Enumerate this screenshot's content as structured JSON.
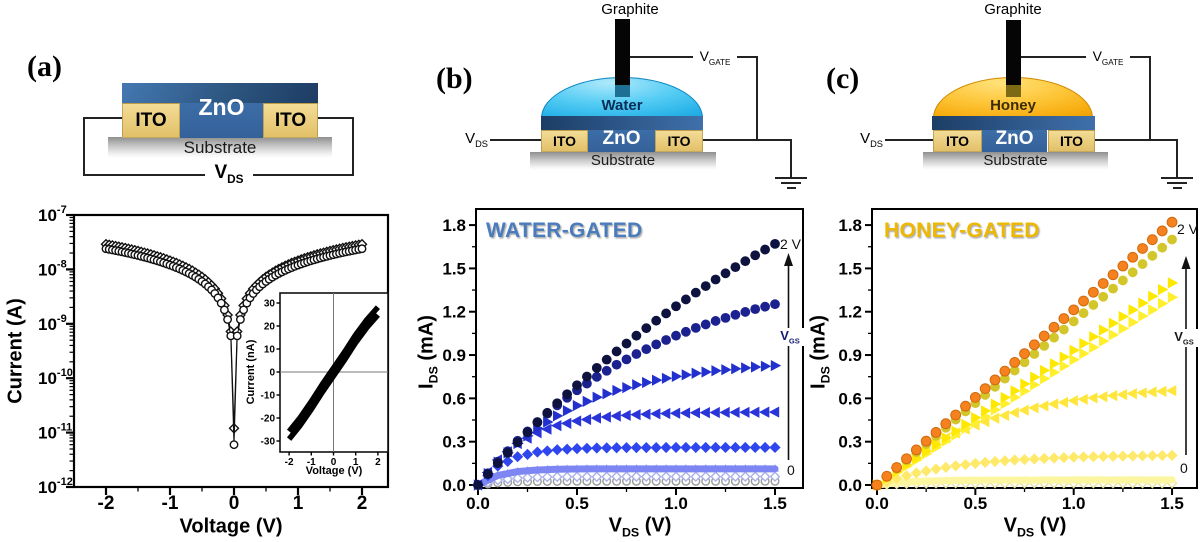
{
  "panel_labels": {
    "a": "(a)",
    "b": "(b)",
    "c": "(c)"
  },
  "schematic_a": {
    "zno": "ZnO",
    "ito_left": "ITO",
    "ito_right": "ITO",
    "substrate": "Substrate",
    "vds": {
      "main": "V",
      "sub": "DS"
    }
  },
  "schematic_b": {
    "graphite": "Graphite",
    "liquid": "Water",
    "zno": "ZnO",
    "ito_left": "ITO",
    "ito_right": "ITO",
    "substrate": "Substrate",
    "vds": {
      "main": "V",
      "sub": "DS"
    },
    "vgate": {
      "main": "V",
      "sub": "GATE"
    },
    "liquid_label_color": "#0a2d55"
  },
  "schematic_c": {
    "graphite": "Graphite",
    "liquid": "Honey",
    "zno": "ZnO",
    "ito_left": "ITO",
    "ito_right": "ITO",
    "substrate": "Substrate",
    "vds": {
      "main": "V",
      "sub": "DS"
    },
    "vgate": {
      "main": "V",
      "sub": "GATE"
    },
    "liquid_label_color": "#3b2c03"
  },
  "chart_data": [
    {
      "id": "a_main",
      "type": "scatter",
      "x_axis": {
        "label": "Voltage (V)",
        "tick_values": [
          -2,
          -1,
          0,
          1,
          2
        ],
        "tick_labels": [
          "-2",
          "-1",
          "0",
          "1",
          "2"
        ],
        "range": [
          -2.5,
          2.4
        ]
      },
      "y_axis": {
        "label": "Current (A)",
        "log": true,
        "tick_exponents": [
          -7,
          -8,
          -9,
          -10,
          -11,
          -12
        ],
        "range_exp": [
          -12,
          -7
        ]
      },
      "series": [
        {
          "name": "sweep-diamond",
          "marker": "diamond",
          "open": true,
          "color": "#111111",
          "x_start": -2,
          "x_step": 0.1,
          "y_nA": [
            29,
            27.6,
            26.1,
            24.7,
            23.2,
            21.8,
            20.3,
            18.9,
            17.4,
            16,
            14.5,
            13.1,
            11.6,
            10.2,
            8.7,
            7.3,
            5.8,
            4.4,
            2.9,
            1.45,
            0.012,
            1.45,
            2.9,
            4.4,
            5.8,
            7.3,
            8.7,
            10.2,
            11.6,
            13.1,
            14.5,
            16,
            17.4,
            18.9,
            20.3,
            21.8,
            23.2,
            24.7,
            26.1,
            27.6,
            29
          ],
          "extra_points_nA": [
            [
              -0.05,
              0.72
            ],
            [
              0.05,
              0.72
            ]
          ]
        },
        {
          "name": "sweep-circle",
          "marker": "circle",
          "open": true,
          "color": "#111111",
          "x_start": -2,
          "x_step": 0.1,
          "y_nA": [
            24,
            22.8,
            21.6,
            20.4,
            19.2,
            18,
            16.8,
            15.6,
            14.4,
            13.2,
            12,
            10.8,
            9.6,
            8.4,
            7.2,
            6,
            4.8,
            3.6,
            2.4,
            1.2,
            0.006,
            1.2,
            2.4,
            3.6,
            4.8,
            6,
            7.2,
            8.4,
            9.6,
            10.8,
            12,
            13.2,
            14.4,
            15.6,
            16.8,
            18,
            19.2,
            20.4,
            21.6,
            22.8,
            24
          ],
          "extra_points_nA": [
            [
              -0.05,
              0.6
            ],
            [
              0.05,
              0.6
            ]
          ]
        }
      ]
    },
    {
      "id": "a_inset",
      "type": "line",
      "x_axis": {
        "label": "Voltage (V)",
        "tick_values": [
          -2,
          -1,
          0,
          1,
          2
        ],
        "tick_labels": [
          "-2",
          "-1",
          "0",
          "1",
          "2"
        ]
      },
      "y_axis": {
        "label": "Current (nA)",
        "tick_values": [
          30,
          20,
          10,
          0,
          -10,
          -20,
          -30
        ],
        "tick_labels": [
          "30",
          "20",
          "10",
          "0",
          "-10",
          "-20",
          "-30"
        ]
      },
      "series": [
        {
          "name": "iv-band",
          "color": "#000000",
          "x": [
            -2,
            -1.5,
            -1,
            -0.5,
            0,
            0.5,
            1,
            1.5,
            2
          ],
          "y": [
            -27.5,
            -21.5,
            -14.5,
            -7,
            0,
            7,
            14.5,
            21,
            26.5
          ]
        }
      ]
    },
    {
      "id": "b_out",
      "type": "scatter",
      "title": "WATER-GATED",
      "title_color": "#4a7cbd",
      "x_axis": {
        "label_parts": [
          "V",
          "DS",
          " (V)"
        ],
        "tick_values": [
          0,
          0.5,
          1,
          1.5
        ],
        "tick_labels": [
          "0.0",
          "0.5",
          "1.0",
          "1.5"
        ]
      },
      "y_axis": {
        "label_parts": [
          "I",
          "DS",
          " (mA)"
        ],
        "tick_values": [
          0,
          0.3,
          0.6,
          0.9,
          1.2,
          1.5,
          1.8
        ],
        "tick_labels": [
          "0.0",
          "0.3",
          "0.6",
          "0.9",
          "1.2",
          "1.5",
          "1.8"
        ]
      },
      "annotations": {
        "vg_top": "2 V",
        "vg_bottom": "0",
        "arrow_label": {
          "main": "V",
          "sub": "GS"
        },
        "arrow_label_color": "#141c6e"
      },
      "x_step": 0.1,
      "series": [
        {
          "name": "vgs-2.0V",
          "marker": "circle",
          "color": "#0d123f",
          "values": [
            0,
            0.151,
            0.296,
            0.434,
            0.566,
            0.691,
            0.811,
            0.925,
            1.034,
            1.138,
            1.238,
            1.332,
            1.423,
            1.509,
            1.591,
            1.67
          ]
        },
        {
          "name": "vgs-1.75V",
          "marker": "circle",
          "color": "#1b2290",
          "values": [
            0,
            0.162,
            0.306,
            0.436,
            0.552,
            0.656,
            0.749,
            0.833,
            0.907,
            0.974,
            1.034,
            1.088,
            1.136,
            1.179,
            1.218,
            1.252
          ]
        },
        {
          "name": "vgs-1.5V",
          "marker": "tri-right",
          "color": "#2230cd",
          "values": [
            0,
            0.158,
            0.287,
            0.393,
            0.479,
            0.55,
            0.608,
            0.655,
            0.694,
            0.726,
            0.752,
            0.774,
            0.791,
            0.805,
            0.817,
            0.827
          ]
        },
        {
          "name": "vgs-1.25V",
          "marker": "tri-left",
          "color": "#2a35d9",
          "values": [
            0,
            0.173,
            0.287,
            0.362,
            0.411,
            0.443,
            0.464,
            0.478,
            0.487,
            0.493,
            0.497,
            0.5,
            0.502,
            0.503,
            0.504,
            0.505
          ]
        },
        {
          "name": "vgs-1.0V",
          "marker": "diamond",
          "color": "#2f46ee",
          "values": [
            0,
            0.131,
            0.196,
            0.228,
            0.244,
            0.252,
            0.256,
            0.258,
            0.259,
            0.259,
            0.26,
            0.26,
            0.26,
            0.26,
            0.26,
            0.26
          ]
        },
        {
          "name": "vgs-0.75V",
          "marker": "band",
          "color": "#7d86f2",
          "values": [
            0,
            0.066,
            0.093,
            0.104,
            0.109,
            0.111,
            0.112,
            0.112,
            0.112,
            0.112,
            0.112,
            0.112,
            0.112,
            0.112,
            0.112,
            0.112
          ]
        },
        {
          "name": "vgs-0.5V",
          "marker": "diamond",
          "open": true,
          "color": "#a9b1e8",
          "values": [
            0,
            0.034,
            0.048,
            0.054,
            0.056,
            0.057,
            0.057,
            0.058,
            0.058,
            0.058,
            0.058,
            0.058,
            0.058,
            0.058,
            0.058,
            0.058
          ]
        },
        {
          "name": "vgs-0V",
          "marker": "circle",
          "open": true,
          "color": "#999999",
          "values": [
            0,
            0.015,
            0.022,
            0.024,
            0.025,
            0.026,
            0.026,
            0.026,
            0.026,
            0.026,
            0.026,
            0.026,
            0.026,
            0.026,
            0.026,
            0.026
          ]
        }
      ]
    },
    {
      "id": "c_out",
      "type": "scatter",
      "title": "HONEY-GATED",
      "title_color": "#eeb800",
      "x_axis": {
        "label_parts": [
          "V",
          "DS",
          " (V)"
        ],
        "tick_values": [
          0,
          0.5,
          1,
          1.5
        ],
        "tick_labels": [
          "0.0",
          "0.5",
          "1.0",
          "1.5"
        ]
      },
      "y_axis": {
        "label_parts": [
          "I",
          "DS",
          " (mA)"
        ],
        "tick_values": [
          0,
          0.3,
          0.6,
          0.9,
          1.2,
          1.5,
          1.8
        ],
        "tick_labels": [
          "0.0",
          "0.3",
          "0.6",
          "0.9",
          "1.2",
          "1.5",
          "1.8"
        ]
      },
      "annotations": {
        "vg_top": "2 V",
        "vg_bottom": "0",
        "arrow_label": {
          "main": "V",
          "sub": "GS"
        },
        "arrow_label_color": "#1a1a1a"
      },
      "x_step": 0.1,
      "series": [
        {
          "name": "vgs-2.0V",
          "marker": "circle",
          "color": "#f5821f",
          "stroke": "#d2690a",
          "values": [
            0,
            0.121,
            0.243,
            0.364,
            0.485,
            0.607,
            0.728,
            0.849,
            0.971,
            1.092,
            1.213,
            1.335,
            1.456,
            1.577,
            1.699,
            1.82
          ]
        },
        {
          "name": "vgs-1.75V",
          "marker": "circle",
          "color": "#d3c62b",
          "values": [
            0,
            0.113,
            0.227,
            0.34,
            0.453,
            0.567,
            0.68,
            0.793,
            0.907,
            1.02,
            1.133,
            1.247,
            1.36,
            1.473,
            1.587,
            1.7
          ]
        },
        {
          "name": "vgs-1.5V",
          "marker": "tri-right",
          "color": "#ffe800",
          "values": [
            0,
            0.093,
            0.187,
            0.28,
            0.373,
            0.467,
            0.56,
            0.653,
            0.747,
            0.84,
            0.933,
            1.027,
            1.12,
            1.213,
            1.307,
            1.4
          ]
        },
        {
          "name": "vgs-1.25V",
          "marker": "tri-right",
          "color": "#ffef2e",
          "values": [
            0,
            0.087,
            0.173,
            0.26,
            0.347,
            0.433,
            0.52,
            0.607,
            0.693,
            0.78,
            0.867,
            0.953,
            1.04,
            1.127,
            1.213,
            1.3
          ]
        },
        {
          "name": "vgs-1.0V",
          "marker": "tri-left",
          "color": "#ffe63c",
          "values": [
            0,
            0.115,
            0.212,
            0.292,
            0.359,
            0.415,
            0.462,
            0.501,
            0.534,
            0.561,
            0.584,
            0.603,
            0.619,
            0.633,
            0.644,
            0.653
          ]
        },
        {
          "name": "vgs-0.75V",
          "marker": "diamond",
          "color": "#ffe96a",
          "values": [
            0,
            0.046,
            0.083,
            0.111,
            0.133,
            0.15,
            0.163,
            0.173,
            0.18,
            0.187,
            0.193,
            0.196,
            0.199,
            0.201,
            0.203,
            0.205
          ]
        },
        {
          "name": "vgs-0.5V",
          "marker": "band",
          "color": "#fdf6a0",
          "values": [
            0,
            0.016,
            0.024,
            0.029,
            0.032,
            0.033,
            0.034,
            0.034,
            0.034,
            0.035,
            0.035,
            0.035,
            0.035,
            0.035,
            0.035,
            0.035
          ]
        },
        {
          "name": "vgs-0V",
          "marker": "diamond",
          "open": true,
          "color": "#e8e2a0",
          "values": [
            0,
            0.007,
            0.01,
            0.011,
            0.012,
            0.012,
            0.012,
            0.012,
            0.012,
            0.012,
            0.012,
            0.012,
            0.012,
            0.012,
            0.012,
            0.012
          ]
        }
      ]
    }
  ]
}
